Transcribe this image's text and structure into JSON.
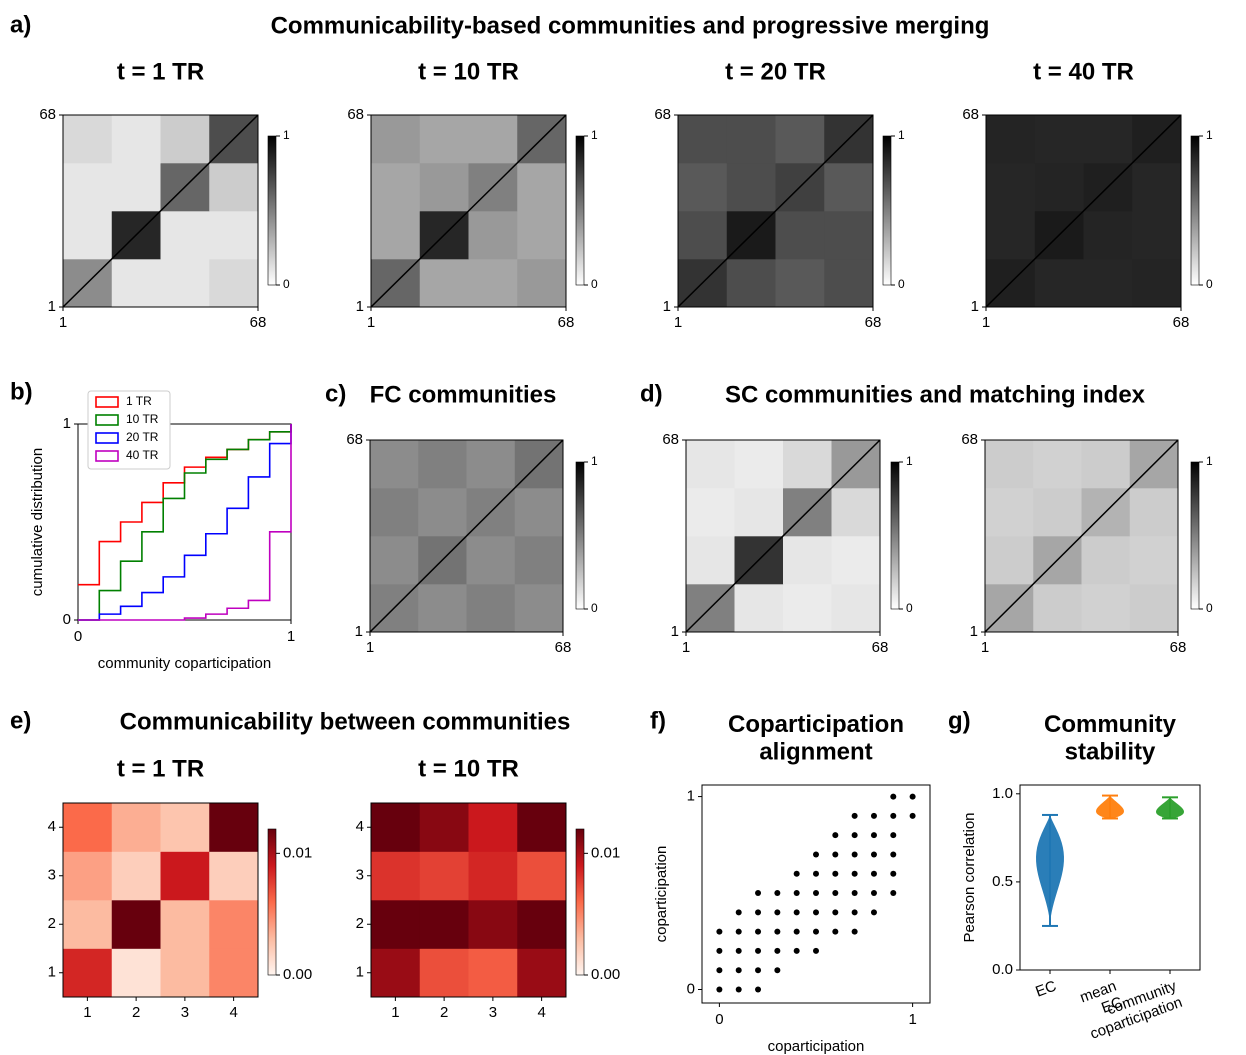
{
  "figure": {
    "letters": [
      "a)",
      "b)",
      "c)",
      "d)",
      "e)",
      "f)",
      "g)"
    ],
    "a_title": "Communicability-based communities and progressive merging",
    "c_title": "FC communities",
    "d_title": "SC communities and matching index",
    "e_title": "Communicability between communities"
  },
  "chart_data": [
    {
      "type": "heatmap",
      "title": "t = 1 TR",
      "colormap": "Greys",
      "xlim": [
        1,
        68
      ],
      "ylim": [
        1,
        68
      ],
      "xticks": [
        1,
        68
      ],
      "yticks": [
        1,
        68
      ],
      "clim": [
        0,
        1
      ],
      "cticks": [
        0,
        1
      ],
      "matrix": [
        [
          0.45,
          0.1,
          0.1,
          0.15
        ],
        [
          0.1,
          0.85,
          0.1,
          0.1
        ],
        [
          0.1,
          0.1,
          0.6,
          0.2
        ],
        [
          0.15,
          0.1,
          0.2,
          0.7
        ]
      ]
    },
    {
      "type": "heatmap",
      "title": "t = 10 TR",
      "colormap": "Greys",
      "xlim": [
        1,
        68
      ],
      "ylim": [
        1,
        68
      ],
      "xticks": [
        1,
        68
      ],
      "yticks": [
        1,
        68
      ],
      "clim": [
        0,
        1
      ],
      "cticks": [
        0,
        1
      ],
      "matrix": [
        [
          0.6,
          0.35,
          0.35,
          0.4
        ],
        [
          0.35,
          0.85,
          0.4,
          0.35
        ],
        [
          0.35,
          0.4,
          0.5,
          0.35
        ],
        [
          0.4,
          0.35,
          0.35,
          0.6
        ]
      ]
    },
    {
      "type": "heatmap",
      "title": "t = 20 TR",
      "colormap": "Greys",
      "xlim": [
        1,
        68
      ],
      "ylim": [
        1,
        68
      ],
      "xticks": [
        1,
        68
      ],
      "yticks": [
        1,
        68
      ],
      "clim": [
        0,
        1
      ],
      "cticks": [
        0,
        1
      ],
      "matrix": [
        [
          0.8,
          0.7,
          0.65,
          0.7
        ],
        [
          0.7,
          0.9,
          0.7,
          0.7
        ],
        [
          0.65,
          0.7,
          0.75,
          0.65
        ],
        [
          0.7,
          0.7,
          0.65,
          0.8
        ]
      ]
    },
    {
      "type": "heatmap",
      "title": "t = 40 TR",
      "colormap": "Greys",
      "xlim": [
        1,
        68
      ],
      "ylim": [
        1,
        68
      ],
      "xticks": [
        1,
        68
      ],
      "yticks": [
        1,
        68
      ],
      "clim": [
        0,
        1
      ],
      "cticks": [
        0,
        1
      ],
      "matrix": [
        [
          0.88,
          0.85,
          0.85,
          0.86
        ],
        [
          0.85,
          0.9,
          0.86,
          0.85
        ],
        [
          0.85,
          0.86,
          0.88,
          0.85
        ],
        [
          0.86,
          0.85,
          0.85,
          0.88
        ]
      ]
    },
    {
      "type": "line",
      "drawstyle": "steps",
      "xlabel": "community coparticipation",
      "ylabel": "cumulative distribution",
      "xlim": [
        0,
        1
      ],
      "ylim": [
        0,
        1
      ],
      "xticks": [
        0,
        1
      ],
      "yticks": [
        0,
        1
      ],
      "legend": "upper left",
      "x": [
        0,
        0.1,
        0.2,
        0.3,
        0.4,
        0.5,
        0.6,
        0.7,
        0.8,
        0.9,
        1
      ],
      "series": [
        {
          "name": "1 TR",
          "color": "#ff0000",
          "values": [
            0.18,
            0.4,
            0.5,
            0.6,
            0.7,
            0.78,
            0.83,
            0.87,
            0.92,
            0.96,
            1
          ]
        },
        {
          "name": "10 TR",
          "color": "#008000",
          "values": [
            0,
            0.15,
            0.3,
            0.45,
            0.62,
            0.75,
            0.82,
            0.87,
            0.92,
            0.96,
            1
          ]
        },
        {
          "name": "20 TR",
          "color": "#0000ff",
          "values": [
            0,
            0.03,
            0.07,
            0.14,
            0.22,
            0.33,
            0.44,
            0.57,
            0.73,
            0.9,
            1
          ]
        },
        {
          "name": "40 TR",
          "color": "#bf00bf",
          "values": [
            0,
            0,
            0,
            0,
            0,
            0.01,
            0.03,
            0.06,
            0.1,
            0.45,
            1
          ]
        }
      ]
    },
    {
      "type": "heatmap",
      "colormap": "Greys",
      "xlim": [
        1,
        68
      ],
      "ylim": [
        1,
        68
      ],
      "xticks": [
        1,
        68
      ],
      "yticks": [
        1,
        68
      ],
      "clim": [
        0,
        1
      ],
      "cticks": [
        0,
        1
      ],
      "matrix": [
        [
          0.5,
          0.45,
          0.5,
          0.45
        ],
        [
          0.45,
          0.55,
          0.45,
          0.5
        ],
        [
          0.5,
          0.45,
          0.5,
          0.45
        ],
        [
          0.45,
          0.5,
          0.45,
          0.55
        ]
      ]
    },
    {
      "type": "heatmap",
      "colormap": "Greys",
      "xlim": [
        1,
        68
      ],
      "ylim": [
        1,
        68
      ],
      "xticks": [
        1,
        68
      ],
      "yticks": [
        1,
        68
      ],
      "clim": [
        0,
        1
      ],
      "cticks": [
        0,
        1
      ],
      "matrix": [
        [
          0.5,
          0.1,
          0.08,
          0.1
        ],
        [
          0.1,
          0.8,
          0.1,
          0.08
        ],
        [
          0.08,
          0.1,
          0.5,
          0.15
        ],
        [
          0.1,
          0.08,
          0.15,
          0.4
        ]
      ]
    },
    {
      "type": "heatmap",
      "colormap": "Greys",
      "xlim": [
        1,
        68
      ],
      "ylim": [
        1,
        68
      ],
      "xticks": [
        1,
        68
      ],
      "yticks": [
        1,
        68
      ],
      "clim": [
        0,
        1
      ],
      "cticks": [
        0,
        1
      ],
      "matrix": [
        [
          0.35,
          0.2,
          0.18,
          0.2
        ],
        [
          0.2,
          0.35,
          0.2,
          0.18
        ],
        [
          0.18,
          0.2,
          0.3,
          0.2
        ],
        [
          0.2,
          0.18,
          0.2,
          0.35
        ]
      ]
    },
    {
      "type": "heatmap",
      "title": "t = 1 TR",
      "colormap": "Reds",
      "xlim": [
        0.5,
        4.5
      ],
      "ylim": [
        0.5,
        4.5
      ],
      "xticks": [
        1,
        2,
        3,
        4
      ],
      "yticks": [
        1,
        2,
        3,
        4
      ],
      "clim": [
        0,
        0.012
      ],
      "cticks": [
        {
          "value": 0,
          "label": "0.00"
        },
        {
          "value": 0.01,
          "label": "0.01"
        }
      ],
      "matrix": [
        [
          0.0085,
          0.001,
          0.003,
          0.005
        ],
        [
          0.003,
          0.012,
          0.003,
          0.005
        ],
        [
          0.004,
          0.002,
          0.009,
          0.002
        ],
        [
          0.006,
          0.0035,
          0.0025,
          0.012
        ]
      ]
    },
    {
      "type": "heatmap",
      "title": "t = 10 TR",
      "colormap": "Reds",
      "xlim": [
        0.5,
        4.5
      ],
      "ylim": [
        0.5,
        4.5
      ],
      "xticks": [
        1,
        2,
        3,
        4
      ],
      "yticks": [
        1,
        2,
        3,
        4
      ],
      "clim": [
        0,
        0.012
      ],
      "cticks": [
        {
          "value": 0,
          "label": "0.00"
        },
        {
          "value": 0.01,
          "label": "0.01"
        }
      ],
      "matrix": [
        [
          0.0105,
          0.007,
          0.0065,
          0.0105
        ],
        [
          0.012,
          0.012,
          0.011,
          0.012
        ],
        [
          0.008,
          0.0075,
          0.0085,
          0.007
        ],
        [
          0.012,
          0.011,
          0.009,
          0.012
        ]
      ]
    },
    {
      "type": "scatter",
      "title": "Coparticipation alignment",
      "xlabel": "coparticipation",
      "ylabel": "coparticipation",
      "color": "#000000",
      "xlim": [
        -0.09,
        1.09
      ],
      "ylim": [
        -0.07,
        1.06
      ],
      "xticks": [
        0,
        1
      ],
      "yticks": [
        0,
        1
      ],
      "x": [
        0,
        0,
        0,
        0,
        0.1,
        0.1,
        0.1,
        0.1,
        0.1,
        0.2,
        0.2,
        0.2,
        0.2,
        0.2,
        0.2,
        0.3,
        0.3,
        0.3,
        0.3,
        0.3,
        0.4,
        0.4,
        0.4,
        0.4,
        0.4,
        0.5,
        0.5,
        0.5,
        0.5,
        0.5,
        0.5,
        0.6,
        0.6,
        0.6,
        0.6,
        0.6,
        0.6,
        0.7,
        0.7,
        0.7,
        0.7,
        0.7,
        0.7,
        0.7,
        0.8,
        0.8,
        0.8,
        0.8,
        0.8,
        0.8,
        0.9,
        0.9,
        0.9,
        0.9,
        0.9,
        0.9,
        1,
        1
      ],
      "y": [
        0,
        0.1,
        0.2,
        0.3,
        0,
        0.1,
        0.2,
        0.3,
        0.4,
        0,
        0.1,
        0.2,
        0.3,
        0.4,
        0.5,
        0.1,
        0.2,
        0.3,
        0.4,
        0.5,
        0.2,
        0.3,
        0.4,
        0.5,
        0.6,
        0.2,
        0.3,
        0.4,
        0.5,
        0.6,
        0.7,
        0.3,
        0.4,
        0.5,
        0.6,
        0.7,
        0.8,
        0.3,
        0.4,
        0.5,
        0.6,
        0.7,
        0.8,
        0.9,
        0.4,
        0.5,
        0.6,
        0.7,
        0.8,
        0.9,
        0.5,
        0.6,
        0.7,
        0.8,
        0.9,
        1,
        0.9,
        1
      ]
    },
    {
      "type": "violin",
      "title": "Community stability",
      "ylabel": "Pearson correlation",
      "categories": [
        "EC",
        "mean EC",
        "community coparticipation"
      ],
      "colors": [
        "#1f77b4",
        "#ff7f0e",
        "#2ca02c"
      ],
      "mins": [
        0.25,
        0.86,
        0.86
      ],
      "maxs": [
        0.88,
        0.99,
        0.98
      ],
      "ylim": [
        0,
        1.05
      ],
      "yticks": [
        {
          "value": 0,
          "label": "0.0"
        },
        {
          "value": 0.5,
          "label": "0.5"
        },
        {
          "value": 1,
          "label": "1.0"
        }
      ]
    }
  ]
}
